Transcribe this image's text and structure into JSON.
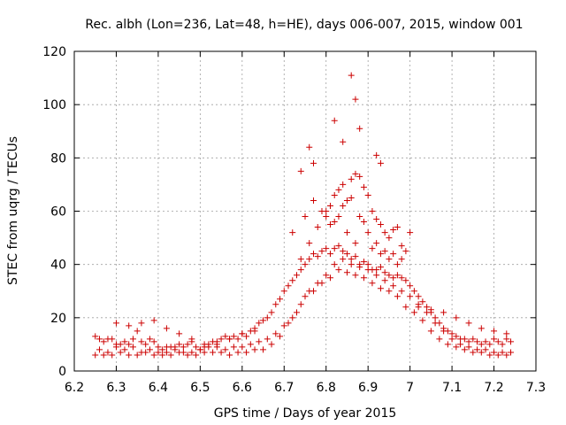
{
  "chart_data": {
    "type": "scatter",
    "title": "Rec. albh (Lon=236, Lat=48, h=HE), days 006-007, 2015, window 001",
    "xlabel": "GPS time / Days of year 2015",
    "ylabel": "STEC from uqrg / TECUs",
    "xlim": [
      6.2,
      7.3
    ],
    "ylim": [
      0,
      120
    ],
    "xticks": [
      6.2,
      6.3,
      6.4,
      6.5,
      6.6,
      6.7,
      6.8,
      6.9,
      7.0,
      7.1,
      7.2,
      7.3
    ],
    "xtick_labels": [
      "6.2",
      "6.3",
      "6.4",
      "6.5",
      "6.6",
      "6.7",
      "6.8",
      "6.9",
      "7",
      "7.1",
      "7.2",
      "7.3"
    ],
    "yticks": [
      0,
      20,
      40,
      60,
      80,
      100,
      120
    ],
    "ytick_labels": [
      "0",
      "20",
      "40",
      "60",
      "80",
      "100",
      "120"
    ],
    "grid": true,
    "marker": "plus",
    "color": "#cc0000",
    "series": [
      {
        "name": "STEC",
        "x": [
          6.25,
          6.26,
          6.27,
          6.28,
          6.29,
          6.3,
          6.31,
          6.32,
          6.33,
          6.34,
          6.35,
          6.36,
          6.37,
          6.38,
          6.39,
          6.4,
          6.41,
          6.42,
          6.43,
          6.44,
          6.45,
          6.46,
          6.47,
          6.48,
          6.49,
          6.5,
          6.51,
          6.52,
          6.53,
          6.54,
          6.55,
          6.56,
          6.57,
          6.58,
          6.59,
          6.6,
          6.61,
          6.62,
          6.63,
          6.64,
          6.65,
          6.66,
          6.67,
          6.68,
          6.69,
          6.7,
          6.71,
          6.72,
          6.73,
          6.74,
          6.75,
          6.76,
          6.77,
          6.78,
          6.79,
          6.8,
          6.81,
          6.82,
          6.83,
          6.84,
          6.85,
          6.86,
          6.87,
          6.88,
          6.89,
          6.9,
          6.91,
          6.92,
          6.93,
          6.94,
          6.95,
          6.96,
          6.97,
          6.98,
          6.99,
          7.0,
          7.01,
          7.02,
          7.03,
          7.04,
          7.05,
          7.06,
          7.07,
          7.08,
          7.09,
          7.1,
          7.11,
          7.12,
          7.13,
          7.14,
          7.15,
          7.16,
          7.17,
          7.18,
          7.19,
          7.2,
          7.21,
          7.22,
          7.23,
          7.24,
          6.25,
          6.27,
          6.29,
          6.31,
          6.33,
          6.35,
          6.37,
          6.39,
          6.41,
          6.43,
          6.45,
          6.47,
          6.49,
          6.51,
          6.53,
          6.55,
          6.57,
          6.59,
          6.61,
          6.63,
          6.65,
          6.67,
          6.69,
          6.71,
          6.73,
          6.75,
          6.77,
          6.79,
          6.81,
          6.83,
          6.85,
          6.87,
          6.89,
          6.91,
          6.93,
          6.95,
          6.97,
          6.99,
          7.01,
          7.03,
          7.05,
          7.07,
          7.09,
          7.11,
          7.13,
          7.15,
          7.17,
          7.19,
          7.21,
          7.23,
          6.26,
          6.28,
          6.3,
          6.32,
          6.34,
          6.36,
          6.38,
          6.4,
          6.42,
          6.44,
          6.46,
          6.48,
          6.5,
          6.52,
          6.54,
          6.56,
          6.58,
          6.6,
          6.62,
          6.64,
          6.66,
          6.68,
          6.7,
          6.72,
          6.74,
          6.76,
          6.78,
          6.8,
          6.82,
          6.84,
          6.86,
          6.88,
          6.9,
          6.92,
          6.94,
          6.96,
          6.98,
          7.0,
          7.02,
          7.04,
          7.06,
          7.08,
          7.1,
          7.12,
          7.14,
          7.16,
          7.18,
          7.2,
          7.22,
          7.24,
          6.74,
          6.76,
          6.78,
          6.8,
          6.81,
          6.82,
          6.83,
          6.84,
          6.85,
          6.86,
          6.87,
          6.88,
          6.89,
          6.9,
          6.91,
          6.92,
          6.93,
          6.94,
          6.95,
          6.96,
          6.97,
          6.98,
          6.99,
          7.0,
          6.72,
          6.75,
          6.77,
          6.79,
          6.81,
          6.83,
          6.85,
          6.87,
          6.89,
          6.91,
          6.93,
          6.95,
          6.97,
          6.8,
          6.82,
          6.84,
          6.86,
          6.88,
          6.9,
          6.92,
          6.94,
          6.96,
          6.98,
          6.3,
          6.33,
          6.36,
          6.39,
          6.42,
          6.45,
          6.48,
          6.51,
          6.54,
          6.57,
          6.6,
          6.63,
          7.02,
          7.05,
          7.08,
          7.11,
          7.14,
          7.17,
          7.2,
          7.23,
          6.86,
          6.87,
          6.82,
          6.88,
          6.84,
          6.92,
          6.93,
          6.77,
          6.76,
          6.74
        ],
        "y": [
          13,
          12,
          11,
          12,
          12,
          10,
          10,
          11,
          10,
          12,
          15,
          11,
          10,
          12,
          11,
          9,
          8,
          9,
          9,
          9,
          10,
          9,
          10,
          11,
          9,
          8,
          9,
          10,
          11,
          10,
          12,
          13,
          12,
          13,
          12,
          14,
          13,
          15,
          16,
          18,
          19,
          20,
          22,
          25,
          27,
          30,
          32,
          34,
          36,
          38,
          40,
          42,
          44,
          43,
          45,
          46,
          44,
          46,
          47,
          45,
          44,
          42,
          43,
          40,
          41,
          40,
          38,
          38,
          39,
          37,
          36,
          35,
          36,
          35,
          34,
          32,
          30,
          28,
          26,
          24,
          22,
          20,
          18,
          16,
          15,
          14,
          13,
          12,
          12,
          11,
          12,
          11,
          10,
          11,
          10,
          12,
          11,
          10,
          12,
          11,
          6,
          6,
          6,
          7,
          6,
          6,
          7,
          6,
          6,
          6,
          7,
          6,
          6,
          7,
          7,
          7,
          6,
          7,
          7,
          8,
          8,
          10,
          13,
          18,
          22,
          28,
          30,
          33,
          35,
          38,
          37,
          36,
          35,
          33,
          31,
          30,
          28,
          24,
          22,
          19,
          15,
          12,
          10,
          9,
          8,
          7,
          7,
          6,
          6,
          6,
          8,
          7,
          9,
          8,
          9,
          7,
          8,
          7,
          7,
          8,
          7,
          7,
          8,
          9,
          9,
          8,
          9,
          9,
          10,
          11,
          12,
          14,
          17,
          20,
          25,
          30,
          33,
          36,
          40,
          42,
          40,
          39,
          38,
          36,
          34,
          32,
          30,
          28,
          25,
          22,
          18,
          15,
          12,
          10,
          9,
          8,
          8,
          7,
          7,
          7,
          42,
          48,
          54,
          58,
          62,
          66,
          68,
          70,
          64,
          72,
          74,
          73,
          69,
          66,
          60,
          57,
          55,
          52,
          50,
          53,
          54,
          47,
          45,
          52,
          52,
          58,
          64,
          60,
          55,
          58,
          52,
          48,
          56,
          46,
          44,
          42,
          40,
          60,
          56,
          62,
          65,
          58,
          52,
          48,
          45,
          44,
          42,
          18,
          17,
          18,
          19,
          16,
          14,
          12,
          10,
          11,
          12,
          14,
          15,
          24,
          23,
          22,
          20,
          18,
          16,
          15,
          14,
          111,
          102,
          94,
          91,
          86,
          81,
          78,
          78,
          84,
          75
        ]
      }
    ]
  }
}
